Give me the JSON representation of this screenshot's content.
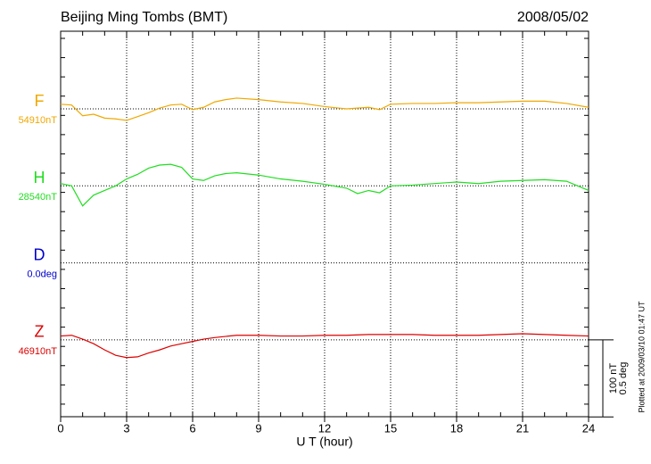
{
  "chart_data": {
    "type": "line",
    "title": "Beijing Ming Tombs (BMT)",
    "date": "2008/05/02",
    "xlabel": "U T (hour)",
    "xlim": [
      0,
      24
    ],
    "xticks": [
      0,
      3,
      6,
      9,
      12,
      15,
      18,
      21,
      24
    ],
    "grid": true,
    "series": [
      {
        "name": "F",
        "color": "#f0a800",
        "baseline": {
          "value": 54910,
          "label": "54910nT"
        },
        "x": [
          0,
          0.5,
          1,
          1.5,
          2,
          2.5,
          3,
          3.5,
          4,
          4.5,
          5,
          5.5,
          6,
          6.5,
          7,
          7.5,
          8,
          9,
          10,
          11,
          12,
          13,
          14,
          14.5,
          15,
          16,
          17,
          18,
          19,
          20,
          21,
          22,
          23,
          24
        ],
        "values": [
          54916,
          54915,
          54901,
          54903,
          54898,
          54897,
          54895,
          54900,
          54905,
          54911,
          54915,
          54916,
          54909,
          54912,
          54919,
          54922,
          54924,
          54922,
          54919,
          54917,
          54913,
          54910,
          54912,
          54909,
          54916,
          54917,
          54917,
          54918,
          54918,
          54919,
          54920,
          54920,
          54917,
          54912
        ]
      },
      {
        "name": "H",
        "color": "#22dd22",
        "baseline": {
          "value": 28540,
          "label": "28540nT"
        },
        "x": [
          0,
          0.5,
          1,
          1.5,
          2,
          2.5,
          3,
          3.5,
          4,
          4.5,
          5,
          5.5,
          6,
          6.5,
          7,
          7.5,
          8,
          9,
          10,
          11,
          12,
          13,
          13.5,
          14,
          14.5,
          15,
          16,
          17,
          18,
          19,
          20,
          21,
          22,
          23,
          24
        ],
        "values": [
          28543,
          28540,
          28514,
          28528,
          28534,
          28540,
          28549,
          28555,
          28563,
          28567,
          28568,
          28564,
          28549,
          28547,
          28553,
          28556,
          28557,
          28554,
          28549,
          28546,
          28542,
          28537,
          28530,
          28534,
          28531,
          28540,
          28541,
          28543,
          28545,
          28543,
          28546,
          28547,
          28548,
          28546,
          28534
        ]
      },
      {
        "name": "D",
        "color": "#0000cc",
        "baseline": {
          "value": 0.0,
          "label": "0.0deg"
        }
      },
      {
        "name": "Z",
        "color": "#dd0000",
        "baseline": {
          "value": 46910,
          "label": "46910nT"
        },
        "x": [
          0,
          0.5,
          1,
          1.5,
          2,
          2.5,
          3,
          3.5,
          4,
          4.5,
          5,
          5.5,
          6,
          6.5,
          7,
          8,
          9,
          10,
          11,
          12,
          13,
          14,
          15,
          16,
          17,
          18,
          19,
          20,
          21,
          22,
          23,
          24
        ],
        "values": [
          46915,
          46916,
          46911,
          46905,
          46897,
          46890,
          46887,
          46888,
          46893,
          46897,
          46902,
          46905,
          46908,
          46911,
          46913,
          46916,
          46916,
          46915,
          46915,
          46916,
          46916,
          46917,
          46917,
          46917,
          46916,
          46916,
          46916,
          46917,
          46918,
          46917,
          46916,
          46915
        ]
      }
    ],
    "scale_bar": [
      {
        "value": 100,
        "label": "100 nT"
      },
      {
        "value": 0.5,
        "label": "0.5 deg"
      }
    ],
    "footnote": "Plotted at 2009/03/10 01:47 UT"
  }
}
